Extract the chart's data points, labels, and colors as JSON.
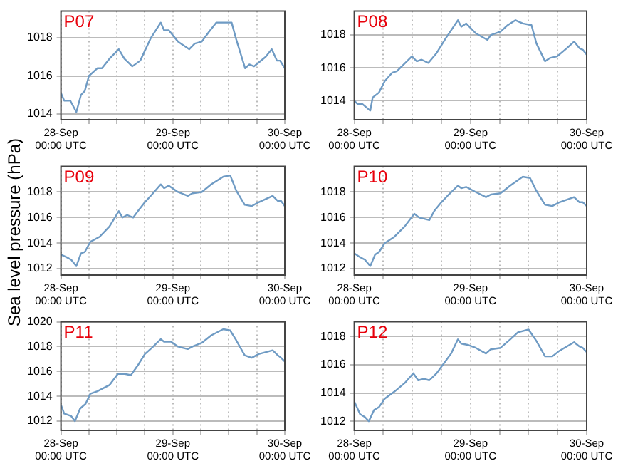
{
  "chart_data": [
    {
      "type": "line",
      "title": "P07",
      "xlim": [
        "--09-28T00:00",
        "--09-30T00:00"
      ],
      "ylim": [
        1013.7,
        1019.4
      ],
      "yticks": [
        1014,
        1016,
        1018
      ],
      "grid": true,
      "line_style": "solid",
      "marker": "none",
      "xticks": [
        {
          "value": "--09-28T00:00",
          "label": "28-Sep\n00:00 UTC"
        },
        {
          "value": "--09-28T06:00",
          "label": null
        },
        {
          "value": "--09-28T12:00",
          "label": null
        },
        {
          "value": "--09-28T18:00",
          "label": null
        },
        {
          "value": "--09-29T00:00",
          "label": "29-Sep\n00:00 UTC"
        },
        {
          "value": "--09-29T06:00",
          "label": null
        },
        {
          "value": "--09-29T12:00",
          "label": null
        },
        {
          "value": "--09-29T18:00",
          "label": null
        },
        {
          "value": "--09-30T00:00",
          "label": "30-Sep\n00:00 UTC"
        }
      ],
      "x": [
        "--09-28T00:00",
        "--09-28T00:42",
        "--09-28T02:00",
        "--09-28T03:18",
        "--09-28T04:18",
        "--09-28T05:06",
        "--09-28T06:00",
        "--09-28T07:48",
        "--09-28T08:48",
        "--09-28T10:24",
        "--09-28T12:24",
        "--09-28T13:36",
        "--09-28T15:18",
        "--09-28T17:00",
        "--09-28T19:18",
        "--09-28T21:24",
        "--09-28T22:06",
        "--09-28T23:06",
        "--09-29T01:06",
        "--09-29T03:30",
        "--09-29T04:42",
        "--09-29T06:12",
        "--09-29T07:42",
        "--09-29T09:18",
        "--09-29T10:48",
        "--09-29T12:36",
        "--09-29T13:36",
        "--09-29T15:30",
        "--09-29T16:24",
        "--09-29T17:24",
        "--09-29T18:24",
        "--09-29T19:54",
        "--09-29T21:12",
        "--09-29T22:18",
        "--09-29T23:00",
        "--09-30T00:00"
      ],
      "series": [
        {
          "color": "#6f9bc4",
          "values": [
            1015.1,
            1014.7,
            1014.7,
            1014.1,
            1015.0,
            1015.2,
            1016.0,
            1016.4,
            1016.4,
            1016.9,
            1017.4,
            1016.9,
            1016.5,
            1016.8,
            1018.0,
            1018.8,
            1018.4,
            1018.4,
            1017.8,
            1017.4,
            1017.7,
            1017.8,
            1018.3,
            1018.8,
            1018.8,
            1018.8,
            1017.9,
            1016.4,
            1016.6,
            1016.5,
            1016.7,
            1017.0,
            1017.4,
            1016.8,
            1016.8,
            1016.4
          ]
        }
      ]
    },
    {
      "type": "line",
      "title": "P08",
      "xlim": [
        "--09-28T00:00",
        "--09-30T00:00"
      ],
      "ylim": [
        1012.85,
        1019.45
      ],
      "yticks": [
        1014,
        1016,
        1018
      ],
      "grid": true,
      "line_style": "solid",
      "marker": "none",
      "xticks": [
        {
          "value": "--09-28T00:00",
          "label": "28-Sep\n00:00 UTC"
        },
        {
          "value": "--09-28T06:00",
          "label": null
        },
        {
          "value": "--09-28T12:00",
          "label": null
        },
        {
          "value": "--09-28T18:00",
          "label": null
        },
        {
          "value": "--09-29T00:00",
          "label": "29-Sep\n00:00 UTC"
        },
        {
          "value": "--09-29T06:00",
          "label": null
        },
        {
          "value": "--09-29T12:00",
          "label": null
        },
        {
          "value": "--09-29T18:00",
          "label": null
        },
        {
          "value": "--09-30T00:00",
          "label": "30-Sep\n00:00 UTC"
        }
      ],
      "x": [
        "--09-28T00:00",
        "--09-28T00:42",
        "--09-28T01:42",
        "--09-28T03:18",
        "--09-28T03:48",
        "--09-28T05:06",
        "--09-28T06:18",
        "--09-28T07:48",
        "--09-28T08:48",
        "--09-28T11:54",
        "--09-28T12:54",
        "--09-28T13:54",
        "--09-28T15:18",
        "--09-28T17:00",
        "--09-28T18:54",
        "--09-28T21:24",
        "--09-28T22:06",
        "--09-28T23:06",
        "--09-29T01:06",
        "--09-29T03:30",
        "--09-29T04:12",
        "--09-29T06:12",
        "--09-29T07:42",
        "--09-29T09:18",
        "--09-29T10:48",
        "--09-29T12:36",
        "--09-29T13:36",
        "--09-29T15:24",
        "--09-29T16:24",
        "--09-29T17:54",
        "--09-29T19:54",
        "--09-29T21:24",
        "--09-29T22:30",
        "--09-29T23:12",
        "--09-30T00:00"
      ],
      "series": [
        {
          "color": "#6f9bc4",
          "values": [
            1014.0,
            1013.8,
            1013.8,
            1013.4,
            1014.2,
            1014.5,
            1015.2,
            1015.7,
            1015.8,
            1016.7,
            1016.4,
            1016.5,
            1016.3,
            1016.9,
            1017.8,
            1018.9,
            1018.5,
            1018.7,
            1018.1,
            1017.7,
            1018.0,
            1018.2,
            1018.6,
            1018.9,
            1018.7,
            1018.6,
            1017.5,
            1016.4,
            1016.6,
            1016.7,
            1017.2,
            1017.6,
            1017.2,
            1017.1,
            1016.8
          ]
        }
      ]
    },
    {
      "type": "line",
      "title": "P09",
      "ylabel": "Sea level pressure (hPa)",
      "xlim": [
        "--09-28T00:00",
        "--09-30T00:00"
      ],
      "ylim": [
        1011.5,
        1020
      ],
      "yticks": [
        1012,
        1014,
        1016,
        1018
      ],
      "grid": true,
      "line_style": "solid",
      "marker": "none",
      "xticks": [
        {
          "value": "--09-28T00:00",
          "label": "28-Sep\n00:00 UTC"
        },
        {
          "value": "--09-28T06:00",
          "label": null
        },
        {
          "value": "--09-28T12:00",
          "label": null
        },
        {
          "value": "--09-28T18:00",
          "label": null
        },
        {
          "value": "--09-29T00:00",
          "label": "29-Sep\n00:00 UTC"
        },
        {
          "value": "--09-29T06:00",
          "label": null
        },
        {
          "value": "--09-29T12:00",
          "label": null
        },
        {
          "value": "--09-29T18:00",
          "label": null
        },
        {
          "value": "--09-30T00:00",
          "label": "30-Sep\n00:00 UTC"
        }
      ],
      "x": [
        "--09-28T00:00",
        "--09-28T01:12",
        "--09-28T02:12",
        "--09-28T03:18",
        "--09-28T04:18",
        "--09-28T05:06",
        "--09-28T06:18",
        "--09-28T08:18",
        "--09-28T10:24",
        "--09-28T12:24",
        "--09-28T13:12",
        "--09-28T14:12",
        "--09-28T15:30",
        "--09-28T16:30",
        "--09-28T18:00",
        "--09-28T19:30",
        "--09-28T21:24",
        "--09-28T22:06",
        "--09-28T23:06",
        "--09-29T01:06",
        "--09-29T03:12",
        "--09-29T04:12",
        "--09-29T06:12",
        "--09-29T08:12",
        "--09-29T10:48",
        "--09-29T12:18",
        "--09-29T13:36",
        "--09-29T15:24",
        "--09-29T16:54",
        "--09-29T18:24",
        "--09-29T21:24",
        "--09-29T22:30",
        "--09-29T23:12",
        "--09-30T00:00"
      ],
      "series": [
        {
          "color": "#6f9bc4",
          "values": [
            1013.1,
            1012.9,
            1012.7,
            1012.2,
            1013.2,
            1013.3,
            1014.1,
            1014.5,
            1015.3,
            1016.5,
            1016.0,
            1016.2,
            1016.0,
            1016.5,
            1017.2,
            1017.8,
            1018.6,
            1018.3,
            1018.5,
            1018.0,
            1017.7,
            1017.9,
            1018.0,
            1018.6,
            1019.2,
            1019.3,
            1018.1,
            1017.0,
            1016.9,
            1017.2,
            1017.7,
            1017.3,
            1017.3,
            1016.9
          ]
        }
      ]
    },
    {
      "type": "line",
      "title": "P10",
      "xlim": [
        "--09-28T00:00",
        "--09-30T00:00"
      ],
      "ylim": [
        1011.5,
        1020
      ],
      "yticks": [
        1012,
        1014,
        1016,
        1018
      ],
      "grid": true,
      "line_style": "solid",
      "marker": "none",
      "xticks": [
        {
          "value": "--09-28T00:00",
          "label": "28-Sep\n00:00 UTC"
        },
        {
          "value": "--09-28T06:00",
          "label": null
        },
        {
          "value": "--09-28T12:00",
          "label": null
        },
        {
          "value": "--09-28T18:00",
          "label": null
        },
        {
          "value": "--09-29T00:00",
          "label": "29-Sep\n00:00 UTC"
        },
        {
          "value": "--09-29T06:00",
          "label": null
        },
        {
          "value": "--09-29T12:00",
          "label": null
        },
        {
          "value": "--09-29T18:00",
          "label": null
        },
        {
          "value": "--09-30T00:00",
          "label": "30-Sep\n00:00 UTC"
        }
      ],
      "x": [
        "--09-28T00:00",
        "--09-28T01:12",
        "--09-28T02:12",
        "--09-28T03:18",
        "--09-28T04:18",
        "--09-28T05:06",
        "--09-28T06:18",
        "--09-28T08:18",
        "--09-28T10:24",
        "--09-28T12:24",
        "--09-28T13:24",
        "--09-28T15:30",
        "--09-28T16:30",
        "--09-28T18:00",
        "--09-28T19:30",
        "--09-28T21:24",
        "--09-28T22:06",
        "--09-28T23:06",
        "--09-29T01:06",
        "--09-29T03:12",
        "--09-29T04:12",
        "--09-29T06:12",
        "--09-29T08:12",
        "--09-29T10:48",
        "--09-29T12:18",
        "--09-29T13:36",
        "--09-29T15:24",
        "--09-29T16:54",
        "--09-29T18:24",
        "--09-29T21:24",
        "--09-29T22:30",
        "--09-29T23:12",
        "--09-30T00:00"
      ],
      "series": [
        {
          "color": "#6f9bc4",
          "values": [
            1013.2,
            1012.9,
            1012.7,
            1012.2,
            1013.1,
            1013.3,
            1014.0,
            1014.5,
            1015.3,
            1016.3,
            1016.0,
            1015.8,
            1016.5,
            1017.2,
            1017.8,
            1018.5,
            1018.3,
            1018.4,
            1018.0,
            1017.6,
            1017.8,
            1017.9,
            1018.5,
            1019.2,
            1019.1,
            1018.1,
            1017.0,
            1016.9,
            1017.2,
            1017.6,
            1017.2,
            1017.2,
            1016.9
          ]
        }
      ]
    },
    {
      "type": "line",
      "title": "P11",
      "xlim": [
        "--09-28T00:00",
        "--09-30T00:00"
      ],
      "ylim": [
        1011.25,
        1020
      ],
      "yticks": [
        1012,
        1014,
        1016,
        1018,
        1020
      ],
      "grid": true,
      "line_style": "solid",
      "marker": "none",
      "xticks": [
        {
          "value": "--09-28T00:00",
          "label": "28-Sep\n00:00 UTC"
        },
        {
          "value": "--09-28T06:00",
          "label": null
        },
        {
          "value": "--09-28T12:00",
          "label": null
        },
        {
          "value": "--09-28T18:00",
          "label": null
        },
        {
          "value": "--09-29T00:00",
          "label": "29-Sep\n00:00 UTC"
        },
        {
          "value": "--09-29T06:00",
          "label": null
        },
        {
          "value": "--09-29T12:00",
          "label": null
        },
        {
          "value": "--09-29T18:00",
          "label": null
        },
        {
          "value": "--09-30T00:00",
          "label": "30-Sep\n00:00 UTC"
        }
      ],
      "x": [
        "--09-28T00:00",
        "--09-28T00:42",
        "--09-28T02:12",
        "--09-28T03:00",
        "--09-28T04:06",
        "--09-28T05:18",
        "--09-28T06:18",
        "--09-28T07:48",
        "--09-28T10:24",
        "--09-28T12:12",
        "--09-28T13:42",
        "--09-28T15:00",
        "--09-28T16:30",
        "--09-28T18:00",
        "--09-28T19:30",
        "--09-28T21:24",
        "--09-28T22:06",
        "--09-28T23:36",
        "--09-29T01:06",
        "--09-29T03:12",
        "--09-29T04:12",
        "--09-29T06:12",
        "--09-29T08:12",
        "--09-29T10:48",
        "--09-29T12:18",
        "--09-29T13:36",
        "--09-29T15:24",
        "--09-29T16:54",
        "--09-29T18:24",
        "--09-29T21:24",
        "--09-29T22:30",
        "--09-29T23:12",
        "--09-30T00:00"
      ],
      "series": [
        {
          "color": "#6f9bc4",
          "values": [
            1013.3,
            1012.6,
            1012.4,
            1012.0,
            1013.0,
            1013.4,
            1014.2,
            1014.4,
            1014.9,
            1015.8,
            1015.8,
            1015.7,
            1016.5,
            1017.4,
            1017.9,
            1018.6,
            1018.4,
            1018.4,
            1018.0,
            1017.8,
            1018.0,
            1018.3,
            1018.9,
            1019.4,
            1019.3,
            1018.5,
            1017.3,
            1017.1,
            1017.4,
            1017.7,
            1017.3,
            1017.1,
            1016.8
          ]
        }
      ]
    },
    {
      "type": "line",
      "title": "P12",
      "xlim": [
        "--09-28T00:00",
        "--09-30T00:00"
      ],
      "ylim": [
        1011.35,
        1019.05
      ],
      "yticks": [
        1012,
        1014,
        1016,
        1018
      ],
      "grid": true,
      "line_style": "solid",
      "marker": "none",
      "xticks": [
        {
          "value": "--09-28T00:00",
          "label": "28-Sep\n00:00 UTC"
        },
        {
          "value": "--09-28T06:00",
          "label": null
        },
        {
          "value": "--09-28T12:00",
          "label": null
        },
        {
          "value": "--09-28T18:00",
          "label": null
        },
        {
          "value": "--09-29T00:00",
          "label": "29-Sep\n00:00 UTC"
        },
        {
          "value": "--09-29T06:00",
          "label": null
        },
        {
          "value": "--09-29T12:00",
          "label": null
        },
        {
          "value": "--09-29T18:00",
          "label": null
        },
        {
          "value": "--09-30T00:00",
          "label": "30-Sep\n00:00 UTC"
        }
      ],
      "x": [
        "--09-28T00:00",
        "--09-28T01:12",
        "--09-28T02:12",
        "--09-28T03:00",
        "--09-28T04:06",
        "--09-28T05:06",
        "--09-28T06:18",
        "--09-28T08:18",
        "--09-28T10:24",
        "--09-28T12:12",
        "--09-28T13:12",
        "--09-28T14:24",
        "--09-28T15:30",
        "--09-28T17:00",
        "--09-28T18:30",
        "--09-28T20:00",
        "--09-28T21:24",
        "--09-28T22:06",
        "--09-28T23:36",
        "--09-29T01:06",
        "--09-29T03:12",
        "--09-29T04:12",
        "--09-29T06:12",
        "--09-29T08:12",
        "--09-29T09:48",
        "--09-29T12:00",
        "--09-29T13:36",
        "--09-29T15:24",
        "--09-29T16:54",
        "--09-29T18:24",
        "--09-29T21:24",
        "--09-29T22:30",
        "--09-29T23:12",
        "--09-30T00:00"
      ],
      "series": [
        {
          "color": "#6f9bc4",
          "values": [
            1013.4,
            1012.5,
            1012.3,
            1012.0,
            1012.8,
            1013.0,
            1013.6,
            1014.1,
            1014.7,
            1015.4,
            1014.9,
            1015.0,
            1014.9,
            1015.4,
            1016.1,
            1016.8,
            1017.8,
            1017.5,
            1017.4,
            1017.2,
            1016.8,
            1017.1,
            1017.2,
            1017.8,
            1018.3,
            1018.5,
            1017.7,
            1016.6,
            1016.6,
            1017.0,
            1017.6,
            1017.3,
            1017.2,
            1016.9
          ]
        }
      ]
    }
  ]
}
